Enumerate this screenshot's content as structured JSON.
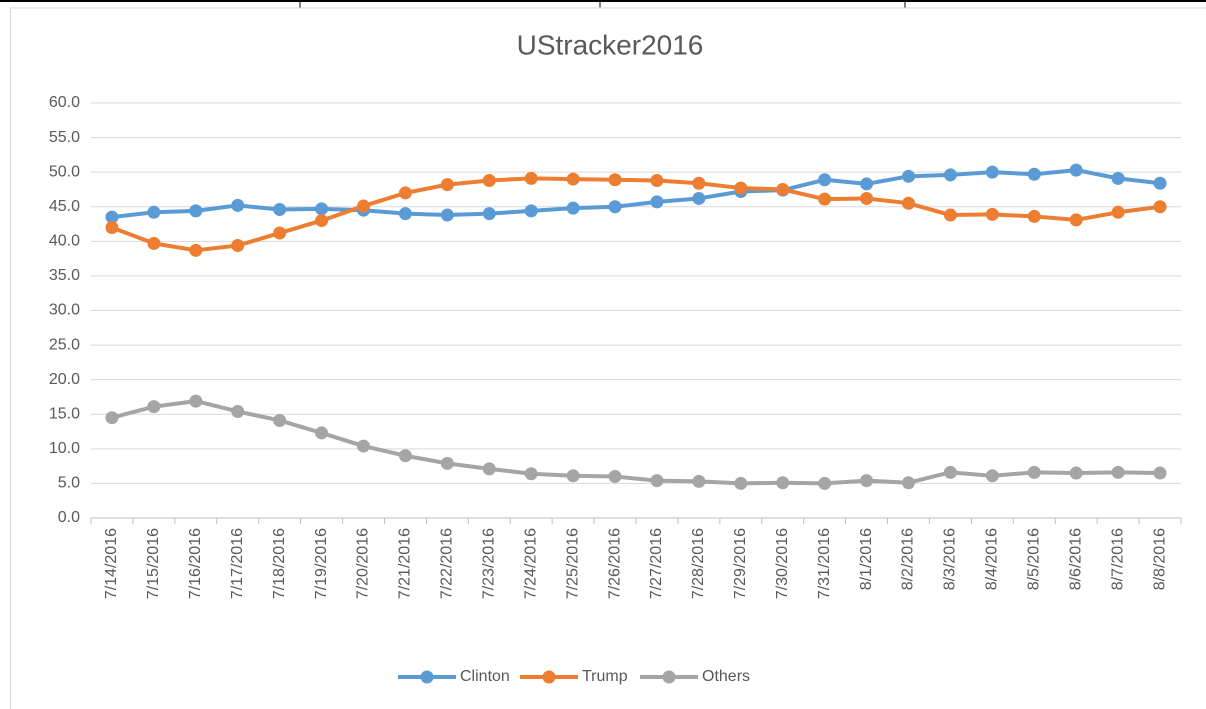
{
  "chart_data": {
    "type": "line",
    "title": "UStracker2016",
    "categories": [
      "7/14/2016",
      "7/15/2016",
      "7/16/2016",
      "7/17/2016",
      "7/18/2016",
      "7/19/2016",
      "7/20/2016",
      "7/21/2016",
      "7/22/2016",
      "7/23/2016",
      "7/24/2016",
      "7/25/2016",
      "7/26/2016",
      "7/27/2016",
      "7/28/2016",
      "7/29/2016",
      "7/30/2016",
      "7/31/2016",
      "8/1/2016",
      "8/2/2016",
      "8/3/2016",
      "8/4/2016",
      "8/5/2016",
      "8/6/2016",
      "8/7/2016",
      "8/8/2016"
    ],
    "series": [
      {
        "name": "Clinton",
        "color": "#5b9bd5",
        "values": [
          43.5,
          44.2,
          44.4,
          45.2,
          44.6,
          44.7,
          44.5,
          44.0,
          43.8,
          44.0,
          44.4,
          44.8,
          45.0,
          45.7,
          46.2,
          47.2,
          47.4,
          48.9,
          48.3,
          49.4,
          49.6,
          50.0,
          49.7,
          50.3,
          49.1,
          48.4
        ]
      },
      {
        "name": "Trump",
        "color": "#ed7d31",
        "values": [
          42.0,
          39.7,
          38.7,
          39.4,
          41.2,
          43.0,
          45.1,
          47.0,
          48.2,
          48.8,
          49.1,
          49.0,
          48.9,
          48.8,
          48.4,
          47.7,
          47.5,
          46.1,
          46.2,
          45.5,
          43.8,
          43.9,
          43.6,
          43.1,
          44.2,
          45.0
        ]
      },
      {
        "name": "Others",
        "color": "#a5a5a5",
        "values": [
          14.5,
          16.1,
          16.9,
          15.4,
          14.1,
          12.3,
          10.4,
          9.0,
          7.9,
          7.1,
          6.4,
          6.1,
          6.0,
          5.4,
          5.3,
          5.0,
          5.1,
          5.0,
          5.4,
          5.1,
          6.6,
          6.1,
          6.6,
          6.5,
          6.6,
          6.5
        ]
      }
    ],
    "ylim": [
      0,
      60
    ],
    "yticks": [
      {
        "value": 0,
        "label": "0.0"
      },
      {
        "value": 5,
        "label": "5.0"
      },
      {
        "value": 10,
        "label": "10.0"
      },
      {
        "value": 15,
        "label": "15.0"
      },
      {
        "value": 20,
        "label": "20.0"
      },
      {
        "value": 25,
        "label": "25.0"
      },
      {
        "value": 30,
        "label": "30.0"
      },
      {
        "value": 35,
        "label": "35.0"
      },
      {
        "value": 40,
        "label": "40.0"
      },
      {
        "value": 45,
        "label": "45.0"
      },
      {
        "value": 50,
        "label": "50.0"
      },
      {
        "value": 55,
        "label": "55.0"
      },
      {
        "value": 60,
        "label": "60.0"
      }
    ],
    "grid": true,
    "legend": "bottom"
  }
}
